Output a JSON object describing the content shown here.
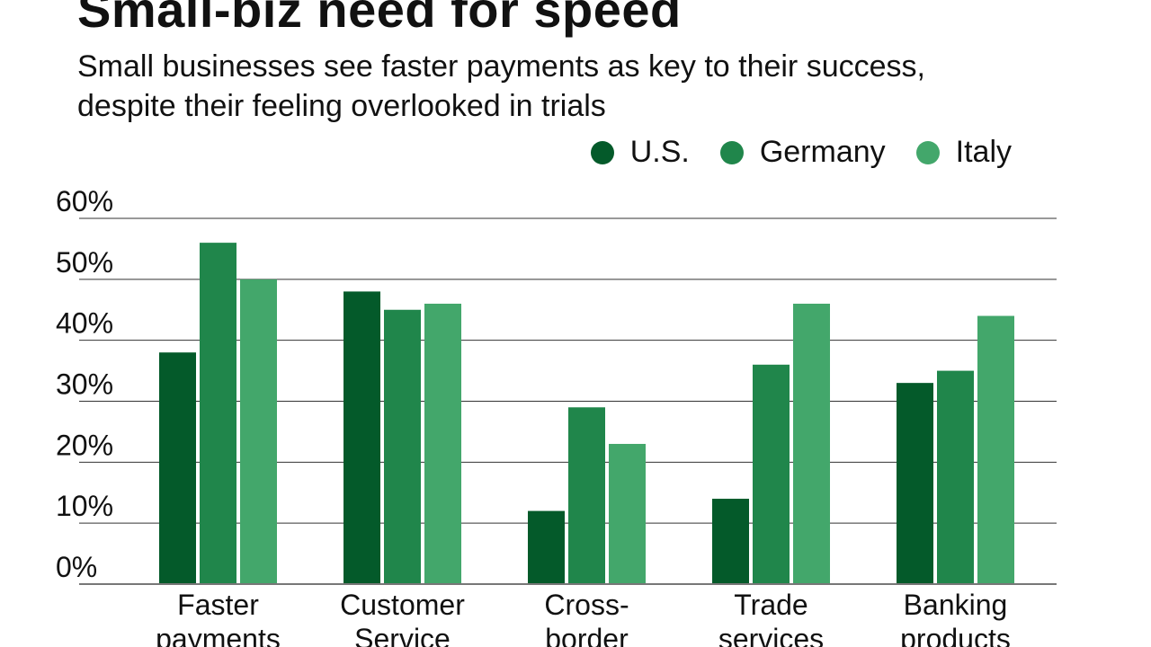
{
  "chart_data": {
    "type": "bar",
    "title": "Small-biz need for speed",
    "subtitle": "Small businesses see faster payments as key to their success, despite their feeling overlooked in trials",
    "categories": [
      [
        "Faster",
        "payments"
      ],
      [
        "Customer",
        "Service"
      ],
      [
        "Cross-",
        "border"
      ],
      [
        "Trade",
        "services"
      ],
      [
        "Banking",
        "products"
      ]
    ],
    "series": [
      {
        "name": "U.S.",
        "color": "#045a2a",
        "values": [
          38,
          48,
          12,
          14,
          33
        ]
      },
      {
        "name": "Germany",
        "color": "#20864b",
        "values": [
          56,
          45,
          29,
          36,
          35
        ]
      },
      {
        "name": "Italy",
        "color": "#43a76b",
        "values": [
          50,
          46,
          23,
          46,
          44
        ]
      }
    ],
    "ylim": [
      0,
      60
    ],
    "yticks": [
      "0%",
      "10%",
      "20%",
      "30%",
      "40%",
      "50%",
      "60%"
    ],
    "grid": true,
    "legend_position": "top-right"
  }
}
